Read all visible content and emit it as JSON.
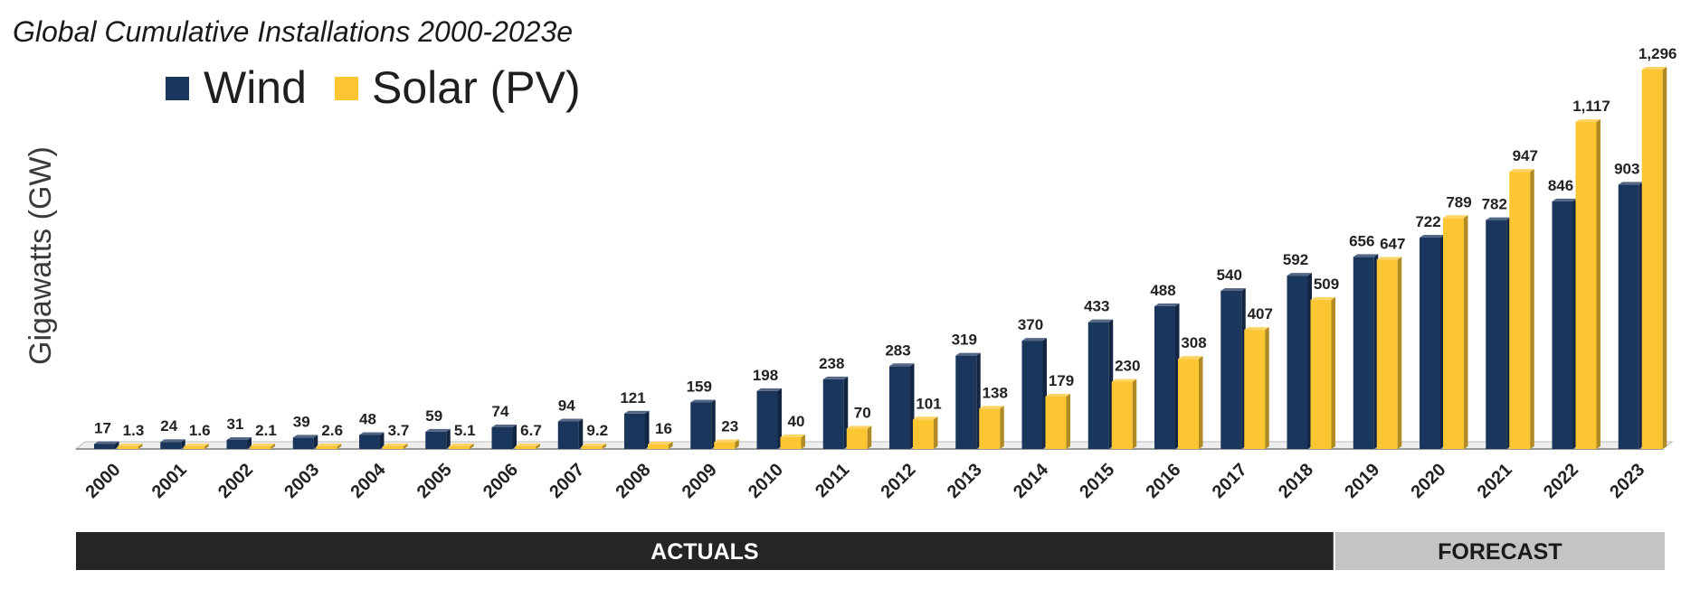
{
  "chart_data": {
    "type": "bar",
    "title": "Global Cumulative Installations 2000-2023e",
    "ylabel": "Gigawatts (GW)",
    "xlabel": "",
    "ylim": [
      0,
      1296
    ],
    "legend_position": "top-left",
    "grid": false,
    "categories": [
      "2000",
      "2001",
      "2002",
      "2003",
      "2004",
      "2005",
      "2006",
      "2007",
      "2008",
      "2009",
      "2010",
      "2011",
      "2012",
      "2013",
      "2014",
      "2015",
      "2016",
      "2017",
      "2018",
      "2019",
      "2020",
      "2021",
      "2022",
      "2023"
    ],
    "series": [
      {
        "name": "Wind",
        "color": "#1b365d",
        "values": [
          17,
          24,
          31,
          39,
          48,
          59,
          74,
          94,
          121,
          159,
          198,
          238,
          283,
          319,
          370,
          433,
          488,
          540,
          592,
          656,
          722,
          782,
          846,
          903
        ],
        "labels": [
          "17",
          "24",
          "31",
          "39",
          "48",
          "59",
          "74",
          "94",
          "121",
          "159",
          "198",
          "238",
          "283",
          "319",
          "370",
          "433",
          "488",
          "540",
          "592",
          "656",
          "722",
          "782",
          "846",
          "903"
        ]
      },
      {
        "name": "Solar (PV)",
        "color": "#fcc632",
        "values": [
          1.3,
          1.6,
          2.1,
          2.6,
          3.7,
          5.1,
          6.7,
          9.2,
          16,
          23,
          40,
          70,
          101,
          138,
          179,
          230,
          308,
          407,
          509,
          647,
          789,
          947,
          1117,
          1296
        ],
        "labels": [
          "1.3",
          "1.6",
          "2.1",
          "2.6",
          "3.7",
          "5.1",
          "6.7",
          "9.2",
          "16",
          "23",
          "40",
          "70",
          "101",
          "138",
          "179",
          "230",
          "308",
          "407",
          "509",
          "647",
          "789",
          "947",
          "1,117",
          "1,296"
        ]
      }
    ],
    "bands": [
      {
        "label": "ACTUALS",
        "from": "2000",
        "to": "2018",
        "color": "#252525",
        "text_color": "#ffffff"
      },
      {
        "label": "FORECAST",
        "from": "2019",
        "to": "2023",
        "color": "#c4c4c4",
        "text_color": "#1a1a1a"
      }
    ]
  }
}
